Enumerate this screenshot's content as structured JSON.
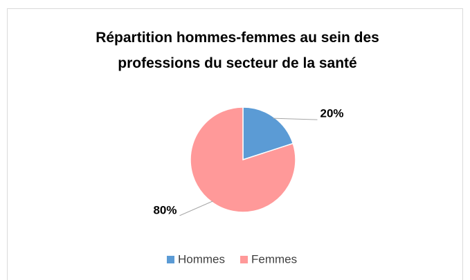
{
  "chart_data": {
    "type": "pie",
    "title": "Répartition hommes-femmes au sein des professions du secteur de la santé",
    "categories": [
      "Hommes",
      "Femmes"
    ],
    "values": [
      20,
      80
    ],
    "value_labels": [
      "20%",
      "80%"
    ],
    "colors": [
      "#5b9bd5",
      "#ff9999"
    ],
    "legend": "bottom"
  }
}
